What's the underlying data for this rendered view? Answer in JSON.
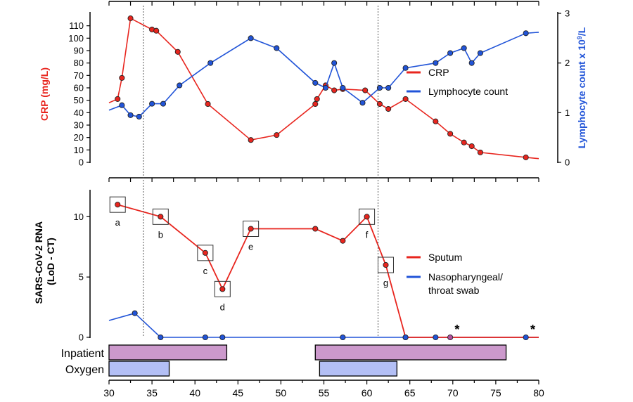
{
  "colors": {
    "crp": "#e8251e",
    "lymph": "#2154d8",
    "inpatient_fill": "#cc99cc",
    "oxygen_fill": "#b3bff5",
    "axis": "#000000",
    "vline": "#555555"
  },
  "chart_data": [
    {
      "type": "line",
      "ylabel_left": "CRP (mg/L)",
      "ylabel_right_prefix": "Lymphocyte count x 10",
      "ylabel_right_exp": "9",
      "ylabel_right_suffix": "/L",
      "ylim_left": [
        0,
        120
      ],
      "yticks_left": [
        0,
        10,
        20,
        30,
        40,
        50,
        60,
        70,
        80,
        90,
        100,
        110
      ],
      "ylim_right": [
        0,
        3
      ],
      "yticks_right": [
        0,
        1,
        2,
        3
      ],
      "xlim": [
        30,
        80
      ],
      "legend_placement": "middle-right",
      "series": [
        {
          "name": "CRP",
          "axis": "left",
          "lead_in": [
            [
              30,
              48
            ],
            [
              31,
              51
            ]
          ],
          "lead_out": [
            [
              78.5,
              4
            ],
            [
              80,
              3
            ]
          ],
          "points": [
            [
              31,
              51
            ],
            [
              31.5,
              68
            ],
            [
              32.5,
              116
            ],
            [
              35,
              107
            ],
            [
              35.5,
              106
            ],
            [
              38,
              89
            ],
            [
              41.5,
              47
            ],
            [
              46.5,
              18
            ],
            [
              49.5,
              22
            ],
            [
              54,
              47
            ],
            [
              54.2,
              51
            ],
            [
              55.2,
              62
            ],
            [
              56.2,
              58
            ],
            [
              57.2,
              59
            ],
            [
              59.8,
              58
            ],
            [
              61.5,
              47
            ],
            [
              62.5,
              43
            ],
            [
              64.5,
              51
            ],
            [
              68,
              33
            ],
            [
              69.7,
              23
            ],
            [
              71.3,
              16
            ],
            [
              72.2,
              13
            ],
            [
              73.2,
              8
            ],
            [
              78.5,
              4
            ]
          ]
        },
        {
          "name": "Lymphocyte count",
          "axis": "right",
          "lead_in": [
            [
              30,
              1.05
            ],
            [
              31.5,
              1.15
            ]
          ],
          "lead_out": [
            [
              78.5,
              2.6
            ],
            [
              80,
              2.62
            ]
          ],
          "points": [
            [
              31.5,
              1.15
            ],
            [
              32.5,
              0.95
            ],
            [
              33.5,
              0.92
            ],
            [
              35,
              1.18
            ],
            [
              36.3,
              1.18
            ],
            [
              38.2,
              1.55
            ],
            [
              41.8,
              2.0
            ],
            [
              46.5,
              2.5
            ],
            [
              49.5,
              2.3
            ],
            [
              54,
              1.6
            ],
            [
              55.2,
              1.5
            ],
            [
              56.2,
              2.0
            ],
            [
              57.2,
              1.5
            ],
            [
              59.5,
              1.2
            ],
            [
              61.5,
              1.5
            ],
            [
              62.5,
              1.5
            ],
            [
              64.5,
              1.9
            ],
            [
              68,
              2.0
            ],
            [
              69.7,
              2.2
            ],
            [
              71.3,
              2.3
            ],
            [
              72.2,
              2.0
            ],
            [
              73.2,
              2.2
            ],
            [
              78.5,
              2.6
            ]
          ]
        }
      ]
    },
    {
      "type": "line",
      "ylabel_line1": "SARS-CoV-2 RNA",
      "ylabel_line2": "(LoD - CT)",
      "ylim": [
        0,
        12
      ],
      "yticks": [
        0,
        5,
        10
      ],
      "xlim": [
        30,
        80
      ],
      "xticks": [
        30,
        35,
        40,
        45,
        50,
        55,
        60,
        65,
        70,
        75,
        80
      ],
      "legend_placement": "middle-right",
      "series": [
        {
          "name": "Sputum",
          "points": [
            [
              31,
              11
            ],
            [
              36,
              10
            ],
            [
              41.2,
              7
            ],
            [
              43.2,
              4
            ],
            [
              46.5,
              9
            ],
            [
              54,
              9
            ],
            [
              57.2,
              8
            ],
            [
              60,
              10
            ],
            [
              62.2,
              6
            ],
            [
              64.5,
              0
            ],
            [
              80,
              0
            ]
          ],
          "boxed": [
            {
              "x": 31,
              "y": 11,
              "label": "a"
            },
            {
              "x": 36,
              "y": 10,
              "label": "b"
            },
            {
              "x": 41.2,
              "y": 7,
              "label": "c"
            },
            {
              "x": 43.2,
              "y": 4,
              "label": "d"
            },
            {
              "x": 46.5,
              "y": 9,
              "label": "e"
            },
            {
              "x": 60,
              "y": 10,
              "label": "f"
            },
            {
              "x": 62.2,
              "y": 6,
              "label": "g"
            }
          ]
        },
        {
          "name": "Nasopharyngeal/",
          "name_line2": "throat swab",
          "lead_in": [
            [
              30,
              1.4
            ],
            [
              33,
              2
            ]
          ],
          "points": [
            [
              33,
              2
            ],
            [
              36,
              0
            ],
            [
              41.2,
              0
            ],
            [
              43.2,
              0
            ],
            [
              57.2,
              0
            ],
            [
              64.5,
              0
            ],
            [
              68,
              0
            ],
            [
              69.7,
              0
            ],
            [
              78.5,
              0
            ]
          ],
          "lead_out": [
            [
              78.5,
              0
            ],
            [
              80,
              0
            ]
          ]
        }
      ],
      "annotations": [
        {
          "x": 70.5,
          "text": "*"
        },
        {
          "x": 79.3,
          "text": "*"
        }
      ]
    }
  ],
  "vertical_lines_x": [
    34,
    61.3
  ],
  "status_bars": {
    "inpatient_label": "Inpatient",
    "oxygen_label": "Oxygen",
    "inpatient": [
      [
        30,
        43.7
      ],
      [
        54,
        76.2
      ]
    ],
    "oxygen": [
      [
        30,
        37
      ],
      [
        54.5,
        63.5
      ]
    ]
  }
}
